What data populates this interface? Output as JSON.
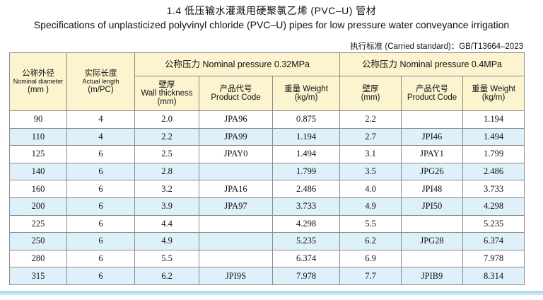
{
  "title_cn": "1.4  低压输水灌溉用硬聚氯乙烯 (PVC–U) 管材",
  "title_en": "Specifications of unplasticized polyvinyl chloride (PVC–U) pipes for low pressure water conveyance irrigation",
  "standard": "执行标准 (Carried standard)：GB/T13664–2023",
  "headers": {
    "diameter_cn": "公称外径",
    "diameter_en": "Nominal diameter",
    "diameter_unit": "(mm )",
    "length_cn": "实际长度",
    "length_en": "Actual length",
    "length_unit": "(m/PC)",
    "group1": "公称压力  Nominal pressure  0.32MPa",
    "group2": "公称压力  Nominal pressure  0.4MPa",
    "wall_cn": "壁厚",
    "wall_en": "Wall thickness",
    "wall_unit": "(mm)",
    "code_cn": "产品代号",
    "code_en": "Product Code",
    "weight_cn": "重量 Weight",
    "weight_unit": "(kg/m)",
    "wall2_cn": "壁厚",
    "wall2_unit": "(mm)"
  },
  "rows": [
    {
      "dn": "90",
      "len": "4",
      "w1": "2.0",
      "c1": "JPA96",
      "kg1": "0.875",
      "w2": "2.2",
      "c2": "",
      "kg2": "1.194"
    },
    {
      "dn": "110",
      "len": "4",
      "w1": "2.2",
      "c1": "JPA99",
      "kg1": "1.194",
      "w2": "2.7",
      "c2": "JPI46",
      "kg2": "1.494"
    },
    {
      "dn": "125",
      "len": "6",
      "w1": "2.5",
      "c1": "JPAY0",
      "kg1": "1.494",
      "w2": "3.1",
      "c2": "JPAY1",
      "kg2": "1.799"
    },
    {
      "dn": "140",
      "len": "6",
      "w1": "2.8",
      "c1": "",
      "kg1": "1.799",
      "w2": "3.5",
      "c2": "JPG26",
      "kg2": "2.486"
    },
    {
      "dn": "160",
      "len": "6",
      "w1": "3.2",
      "c1": "JPA16",
      "kg1": "2.486",
      "w2": "4.0",
      "c2": "JPI48",
      "kg2": "3.733"
    },
    {
      "dn": "200",
      "len": "6",
      "w1": "3.9",
      "c1": "JPA97",
      "kg1": "3.733",
      "w2": "4.9",
      "c2": "JPI50",
      "kg2": "4.298"
    },
    {
      "dn": "225",
      "len": "6",
      "w1": "4.4",
      "c1": "",
      "kg1": "4.298",
      "w2": "5.5",
      "c2": "",
      "kg2": "5.235"
    },
    {
      "dn": "250",
      "len": "6",
      "w1": "4.9",
      "c1": "",
      "kg1": "5.235",
      "w2": "6.2",
      "c2": "JPG28",
      "kg2": "6.374"
    },
    {
      "dn": "280",
      "len": "6",
      "w1": "5.5",
      "c1": "",
      "kg1": "6.374",
      "w2": "6.9",
      "c2": "",
      "kg2": "7.978"
    },
    {
      "dn": "315",
      "len": "6",
      "w1": "6.2",
      "c1": "JPI9S",
      "kg1": "7.978",
      "w2": "7.7",
      "c2": "JPIB9",
      "kg2": "8.314"
    }
  ],
  "colors": {
    "header_bg": "#fbf4cf",
    "row_alt_bg": "#def0fa",
    "border": "#8a8a8a",
    "bottom_line": "#9cd3ef"
  }
}
